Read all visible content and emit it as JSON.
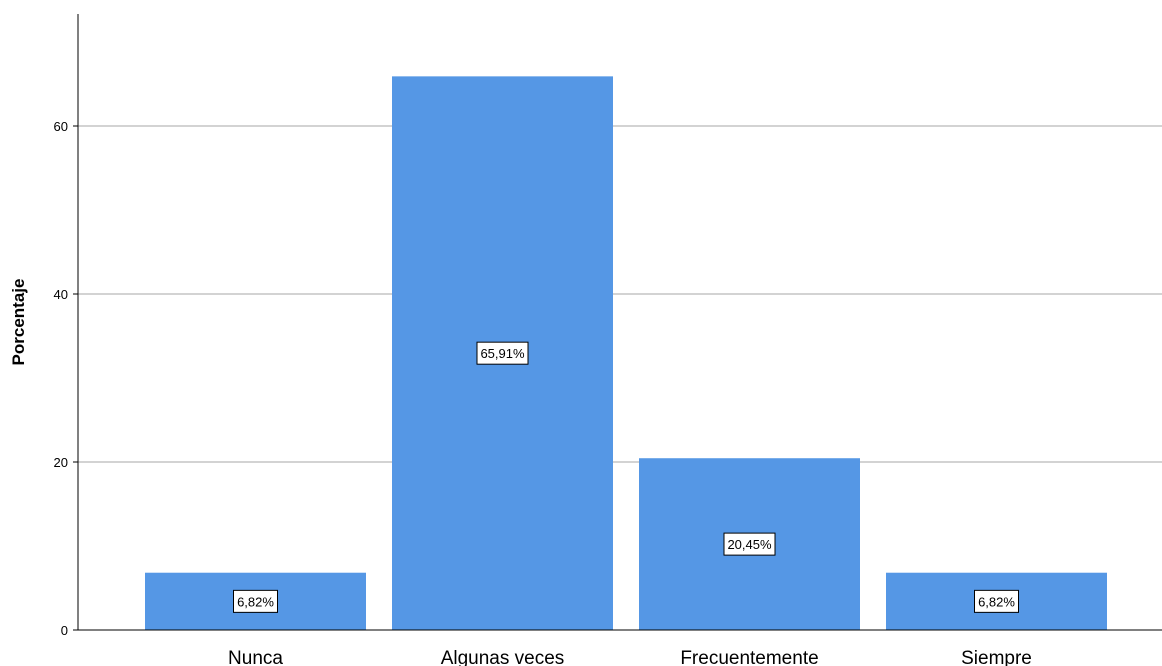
{
  "chart_data": {
    "type": "bar",
    "title": "",
    "xlabel": "",
    "ylabel": "Porcentaje",
    "categories": [
      "Nunca",
      "Algunas veces",
      "Frecuentemente",
      "Siempre"
    ],
    "values": [
      6.82,
      65.91,
      20.45,
      6.82
    ],
    "data_labels": [
      "6,82%",
      "65,91%",
      "20,45%",
      "6,82%"
    ],
    "ylim": [
      0,
      72
    ],
    "yticks": [
      0,
      20,
      40,
      60
    ],
    "ytick_labels": [
      "0",
      "20",
      "40",
      "60"
    ],
    "grid": "horizontal",
    "legend": "none",
    "colors": {
      "bar": "#5597e5",
      "grid": "#d3d3d3",
      "axis": "#000000",
      "label_box_bg": "#ffffff",
      "label_box_border": "#000000"
    }
  }
}
